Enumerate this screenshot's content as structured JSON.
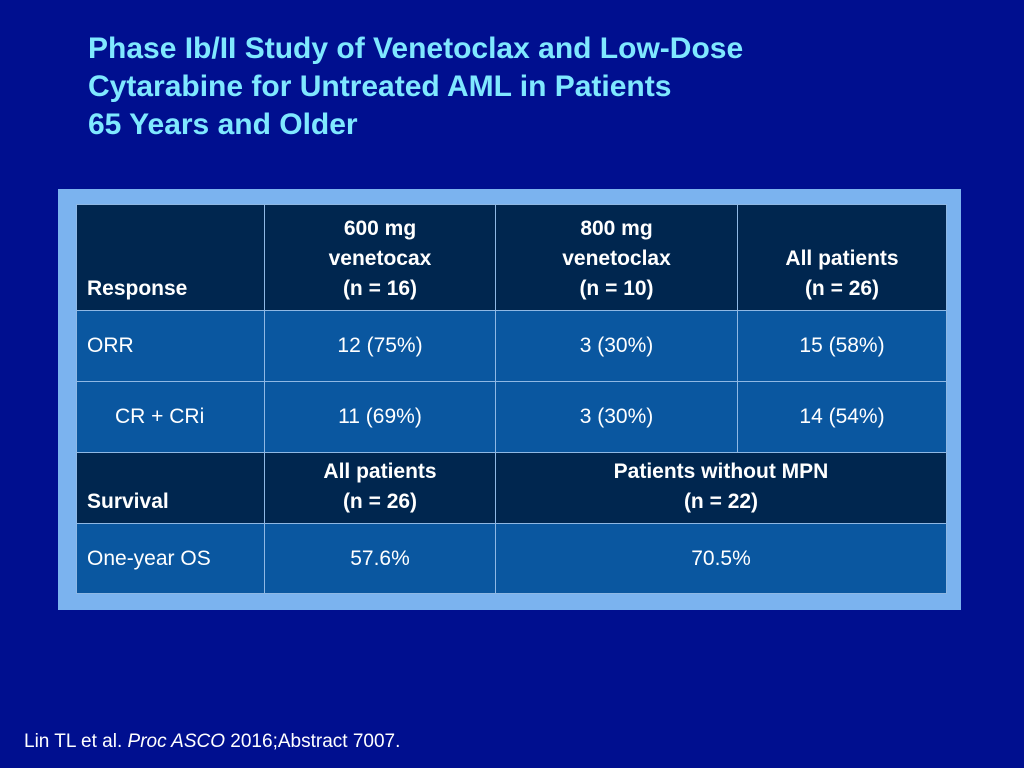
{
  "title": {
    "line1": "Phase Ib/II Study of Venetoclax and Low-Dose",
    "line2": "Cytarabine for Untreated AML in Patients",
    "line3": "65 Years and Older"
  },
  "response_table": {
    "header": {
      "label": "Response",
      "col1": [
        "600 mg",
        "venetocax",
        "(n = 16)"
      ],
      "col2": [
        "800 mg",
        "venetoclax",
        "(n = 10)"
      ],
      "col3": [
        "All patients",
        "(n = 26)"
      ]
    },
    "rows": [
      {
        "label": "ORR",
        "c1": "12 (75%)",
        "c2": "3 (30%)",
        "c3": "15 (58%)"
      },
      {
        "label": "CR + CRi",
        "c1": "11 (69%)",
        "c2": "3 (30%)",
        "c3": "14 (54%)"
      }
    ]
  },
  "survival_table": {
    "header": {
      "label": "Survival",
      "col1": [
        "All patients",
        "(n = 26)"
      ],
      "col2": [
        "Patients without MPN",
        "(n = 22)"
      ]
    },
    "rows": [
      {
        "label": "One-year OS",
        "c1": "57.6%",
        "c2": "70.5%"
      }
    ]
  },
  "footnote": {
    "authors": "Lin TL et al.",
    "journal": "Proc ASCO",
    "rest": "2016;Abstract 7007."
  }
}
